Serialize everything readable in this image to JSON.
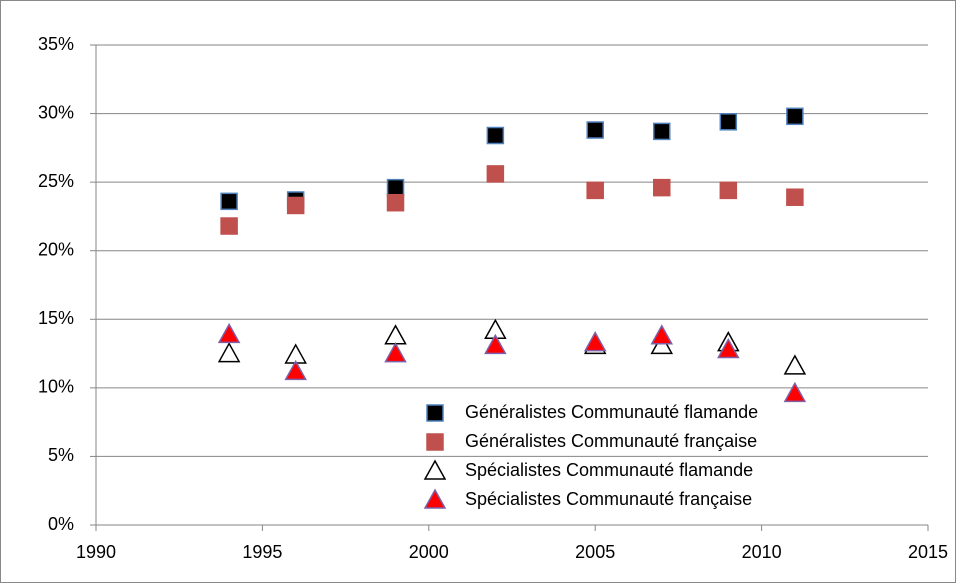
{
  "chart_data": {
    "type": "scatter",
    "x": [
      1994,
      1996,
      1999,
      2002,
      2005,
      2007,
      2009,
      2011
    ],
    "series": [
      {
        "name": "Généralistes Communauté flamande",
        "marker": "square",
        "color": "#000000",
        "edge": "#4f81bd",
        "values": [
          23.6,
          23.7,
          24.6,
          28.4,
          28.8,
          28.7,
          29.4,
          29.8
        ]
      },
      {
        "name": "Généralistes Communauté française",
        "marker": "square",
        "color": "#c0504d",
        "edge": "#c0504d",
        "values": [
          21.8,
          23.3,
          23.5,
          25.6,
          24.4,
          24.6,
          24.4,
          23.9
        ]
      },
      {
        "name": "Spécialistes Communauté flamande",
        "marker": "triangle",
        "color": "#ffffff",
        "edge": "#000000",
        "values": [
          12.5,
          12.4,
          13.8,
          14.2,
          13.1,
          13.1,
          13.3,
          11.6
        ]
      },
      {
        "name": "Spécialistes Communauté française",
        "marker": "triangle",
        "color": "#ff0000",
        "edge": "#7f5fa8",
        "values": [
          13.9,
          11.2,
          12.5,
          13.1,
          13.3,
          13.8,
          12.8,
          9.6
        ]
      }
    ],
    "xlim": [
      1990,
      2015
    ],
    "xticks": [
      1990,
      1995,
      2000,
      2005,
      2010,
      2015
    ],
    "ylim": [
      0,
      35
    ],
    "yticks": [
      {
        "value": 0,
        "label": "0%"
      },
      {
        "value": 5,
        "label": "5%"
      },
      {
        "value": 10,
        "label": "10%"
      },
      {
        "value": 15,
        "label": "15%"
      },
      {
        "value": 20,
        "label": "20%"
      },
      {
        "value": 25,
        "label": "25%"
      },
      {
        "value": 30,
        "label": "30%"
      },
      {
        "value": 35,
        "label": "35%"
      }
    ],
    "grid": true,
    "legend": "lower-right"
  }
}
